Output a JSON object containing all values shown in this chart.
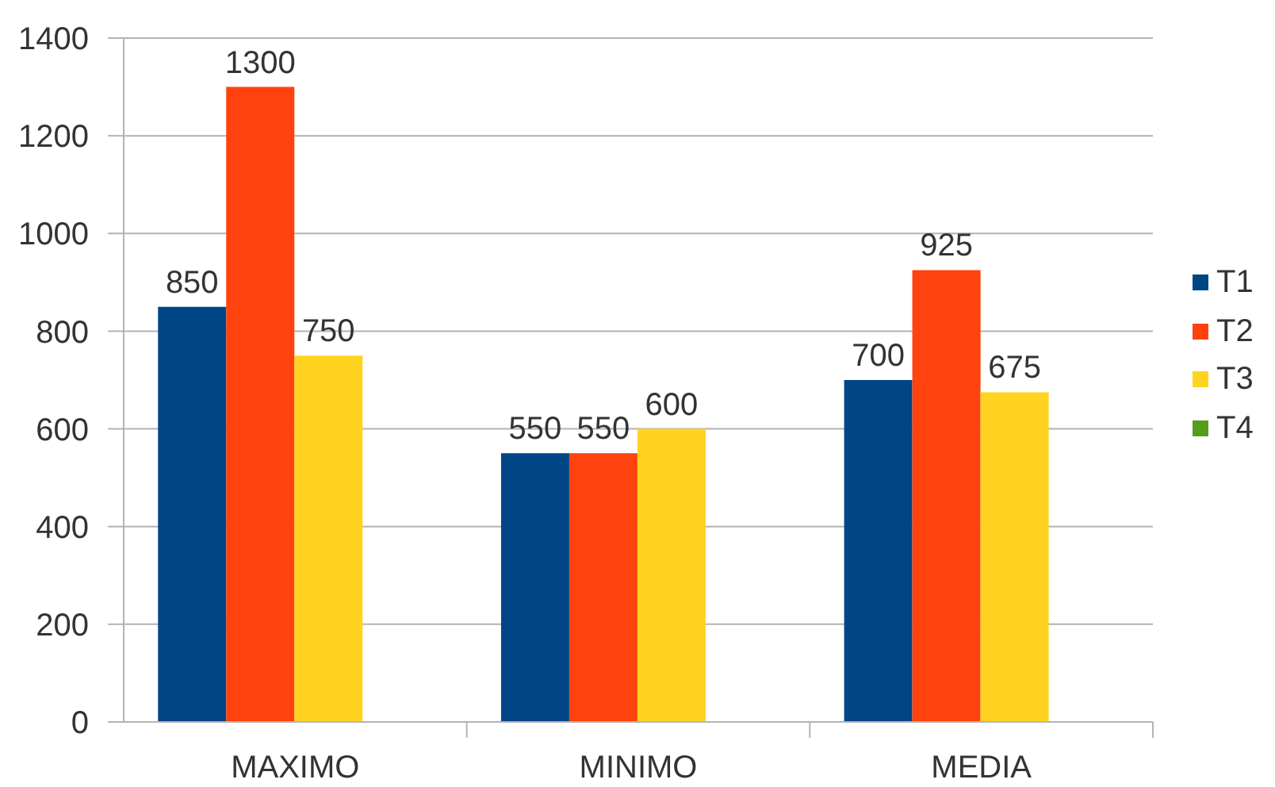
{
  "chart_data": {
    "type": "bar",
    "categories": [
      "MAXIMO",
      "MINIMO",
      "MEDIA"
    ],
    "series": [
      {
        "name": "T1",
        "color": "#004586",
        "values": [
          850,
          550,
          700
        ]
      },
      {
        "name": "T2",
        "color": "#ff420e",
        "values": [
          1300,
          550,
          925
        ]
      },
      {
        "name": "T3",
        "color": "#ffd320",
        "values": [
          750,
          600,
          675
        ]
      },
      {
        "name": "T4",
        "color": "#579d1c",
        "values": [
          null,
          null,
          null
        ]
      }
    ],
    "ylim": [
      0,
      1400
    ],
    "yticks": [
      0,
      200,
      400,
      600,
      800,
      1000,
      1200,
      1400
    ],
    "grid": "y",
    "legend": "right",
    "data_labels": true
  }
}
